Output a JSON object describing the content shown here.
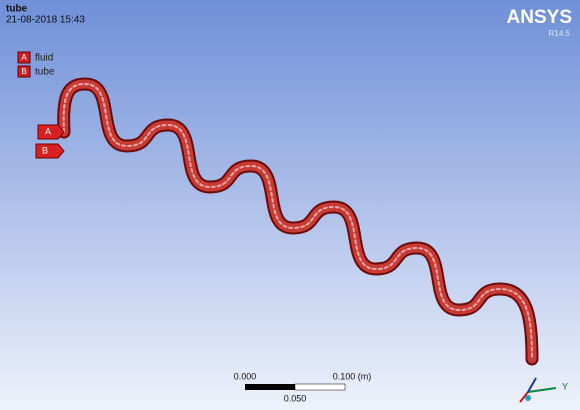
{
  "header": {
    "title": "tube",
    "timestamp": "21-08-2018 15:43"
  },
  "logo": {
    "name": "ANSYS",
    "version": "R14.5"
  },
  "legend": [
    {
      "key": "A",
      "label": "fluid"
    },
    {
      "key": "B",
      "label": "tube"
    }
  ],
  "tags": [
    "A",
    "B"
  ],
  "scale_bar": {
    "start": "0.000",
    "end": "0.100 (m)",
    "mid": "0.050"
  },
  "triad": {
    "y": "Y"
  }
}
